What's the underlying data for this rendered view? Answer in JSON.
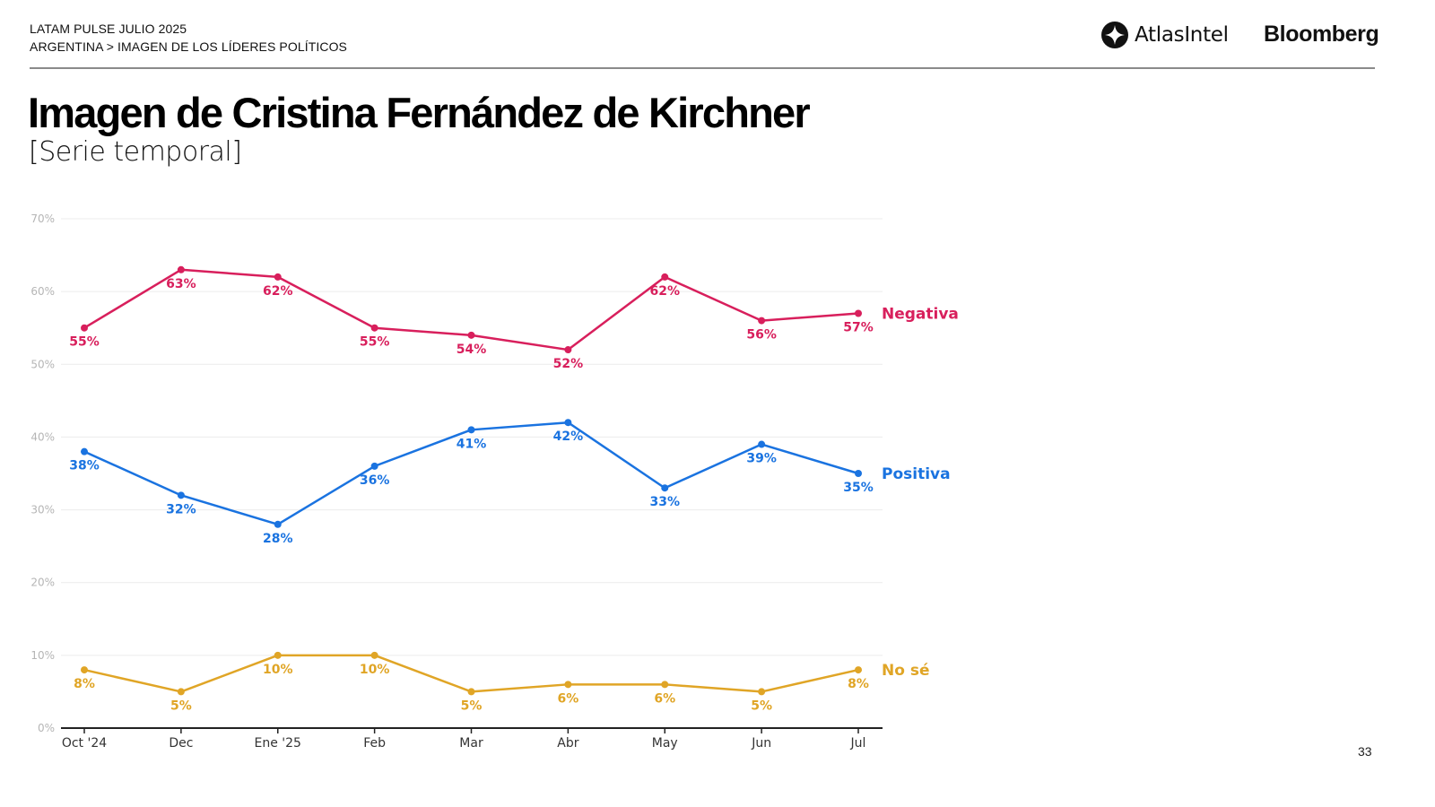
{
  "header": {
    "line1": "LATAM PULSE JULIO 2025",
    "line2": "ARGENTINA > IMAGEN DE LOS LÍDERES POLÍTICOS"
  },
  "brands": {
    "atlas": "AtlasIntel",
    "bloomberg": "Bloomberg"
  },
  "title": "Imagen de Cristina Fernández de Kirchner",
  "subtitle": "[Serie temporal]",
  "page_number": "33",
  "chart_data": {
    "type": "line",
    "title": "Imagen de Cristina Fernández de Kirchner",
    "subtitle": "[Serie temporal]",
    "xlabel": "",
    "ylabel": "",
    "categories": [
      "Oct '24",
      "Dec",
      "Ene '25",
      "Feb",
      "Mar",
      "Abr",
      "May",
      "Jun",
      "Jul"
    ],
    "ylim": [
      0,
      70
    ],
    "yticks": [
      0,
      10,
      20,
      30,
      40,
      50,
      60,
      70
    ],
    "ytick_labels": [
      "0%",
      "10%",
      "20%",
      "30%",
      "40%",
      "50%",
      "60%",
      "70%"
    ],
    "grid": true,
    "legend": "direct labels at right end of each line",
    "value_suffix": "%",
    "series": [
      {
        "name": "Negativa",
        "color": "#d81f5c",
        "values": [
          55,
          63,
          62,
          55,
          54,
          52,
          62,
          56,
          57
        ]
      },
      {
        "name": "Positiva",
        "color": "#1a73e0",
        "values": [
          38,
          32,
          28,
          36,
          41,
          42,
          33,
          39,
          35
        ]
      },
      {
        "name": "No sé",
        "color": "#e0a526",
        "values": [
          8,
          5,
          10,
          10,
          5,
          6,
          6,
          5,
          8
        ]
      }
    ]
  }
}
